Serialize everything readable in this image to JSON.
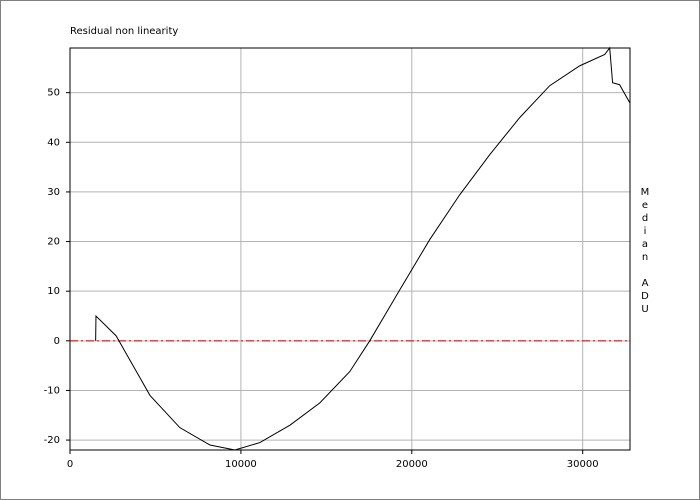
{
  "chart_data": {
    "type": "line",
    "title": "Residual non linearity",
    "y_label": "Median ADU",
    "x": [
      1500,
      1520,
      2700,
      4680,
      6430,
      8190,
      9650,
      11110,
      12870,
      14620,
      16370,
      17540,
      19300,
      21050,
      22800,
      24560,
      26320,
      28070,
      29820,
      31290,
      31580,
      31750,
      32160,
      32750
    ],
    "series": [
      {
        "color": "#000000",
        "values": [
          0,
          5,
          1,
          -11,
          -17.5,
          -21,
          -22,
          -20.5,
          -17,
          -12.5,
          -6.2,
          0,
          10.3,
          20.4,
          29.4,
          37.5,
          45,
          51.4,
          55.4,
          57.7,
          59,
          52,
          51.6,
          48
        ]
      }
    ],
    "reference_line": {
      "value": 0,
      "color": "#c00000"
    },
    "xlim": [
      0,
      32768
    ],
    "ylim": [
      -22,
      59
    ],
    "xticks": [
      0,
      10000,
      20000,
      30000
    ],
    "yticks": [
      -20,
      -10,
      0,
      10,
      20,
      30,
      40,
      50
    ],
    "grid": true
  }
}
